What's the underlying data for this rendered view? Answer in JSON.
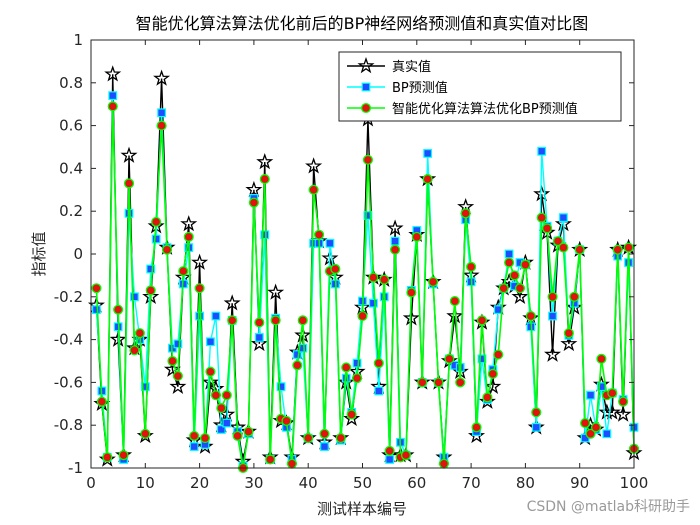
{
  "chart_data": {
    "type": "line",
    "title": "智能优化算法算法优化前后的BP神经网络预测值和真实值对比图",
    "xlabel": "测试样本编号",
    "ylabel": "指标值",
    "xlim": [
      0,
      100
    ],
    "ylim": [
      -1,
      1
    ],
    "xticks": [
      0,
      10,
      20,
      30,
      40,
      50,
      60,
      70,
      80,
      90,
      100
    ],
    "yticks": [
      -1,
      -0.8,
      -0.6,
      -0.4,
      -0.2,
      0,
      0.2,
      0.4,
      0.6,
      0.8,
      1
    ],
    "grid": false,
    "legend_position": "top-right",
    "x": [
      1,
      2,
      3,
      4,
      5,
      6,
      7,
      8,
      9,
      10,
      11,
      12,
      13,
      14,
      15,
      16,
      17,
      18,
      19,
      20,
      21,
      22,
      23,
      24,
      25,
      26,
      27,
      28,
      29,
      30,
      31,
      32,
      33,
      34,
      35,
      36,
      37,
      38,
      39,
      40,
      41,
      42,
      43,
      44,
      45,
      46,
      47,
      48,
      49,
      50,
      51,
      52,
      53,
      54,
      55,
      56,
      57,
      58,
      59,
      60,
      61,
      62,
      63,
      64,
      65,
      66,
      67,
      68,
      69,
      70,
      71,
      72,
      73,
      74,
      75,
      76,
      77,
      78,
      79,
      80,
      81,
      82,
      83,
      84,
      85,
      86,
      87,
      88,
      89,
      90,
      91,
      92,
      93,
      94,
      95,
      96,
      97,
      98,
      99,
      100
    ],
    "series": [
      {
        "name": "真实值",
        "color": "#000000",
        "marker": "star",
        "values": [
          -0.24,
          -0.7,
          -0.96,
          0.84,
          -0.4,
          -0.94,
          0.46,
          -0.44,
          -0.4,
          -0.85,
          -0.2,
          0.13,
          0.82,
          0.03,
          -0.54,
          -0.62,
          -0.11,
          0.14,
          -0.87,
          -0.04,
          -0.9,
          -0.6,
          -0.63,
          -0.8,
          -0.75,
          -0.23,
          -0.81,
          -0.97,
          -0.83,
          0.3,
          -0.42,
          0.43,
          -0.95,
          -0.18,
          -0.78,
          -0.79,
          -0.95,
          -0.46,
          -0.38,
          -0.86,
          0.41,
          0.06,
          -0.88,
          -0.02,
          -0.11,
          -0.86,
          -0.6,
          -0.77,
          -0.55,
          -0.25,
          0.63,
          -0.11,
          -0.62,
          -0.12,
          -0.94,
          0.12,
          -0.94,
          -0.94,
          -0.3,
          0.09,
          -0.6,
          0.35,
          -0.13,
          -0.6,
          -0.95,
          -0.5,
          -0.29,
          -0.55,
          0.22,
          -0.1,
          -0.85,
          -0.32,
          -0.69,
          -0.62,
          -0.25,
          -0.16,
          -0.13,
          -0.15,
          -0.2,
          -0.04,
          -0.3,
          -0.81,
          0.28,
          0.1,
          -0.47,
          0.04,
          0.14,
          -0.42,
          -0.25,
          0.02,
          -0.86,
          -0.8,
          -0.82,
          -0.61,
          -0.74,
          -0.74,
          0.02,
          -0.75,
          0.03,
          -0.93
        ]
      },
      {
        "name": "BP预测值",
        "color": "#00ffff",
        "marker": "square",
        "values": [
          -0.26,
          -0.64,
          -0.95,
          0.74,
          -0.34,
          -0.96,
          0.19,
          -0.2,
          -0.4,
          -0.62,
          -0.07,
          0.07,
          0.66,
          0.03,
          -0.44,
          -0.42,
          -0.14,
          0.03,
          -0.9,
          -0.29,
          -0.89,
          -0.41,
          -0.29,
          -0.82,
          -0.79,
          -0.31,
          -0.83,
          -0.99,
          -0.84,
          0.26,
          -0.39,
          0.09,
          -0.96,
          -0.3,
          -0.62,
          -0.81,
          -0.96,
          -0.47,
          -0.44,
          -0.86,
          0.05,
          0.05,
          -0.9,
          0.05,
          -0.14,
          -0.87,
          -0.58,
          -0.74,
          -0.51,
          -0.22,
          0.18,
          -0.23,
          -0.64,
          -0.2,
          -0.96,
          0.06,
          -0.88,
          -0.94,
          -0.17,
          0.11,
          -0.6,
          0.47,
          -0.14,
          -0.6,
          -0.95,
          -0.49,
          -0.52,
          -0.53,
          0.16,
          -0.13,
          -0.83,
          -0.49,
          -0.68,
          -0.54,
          -0.26,
          -0.16,
          0.0,
          -0.15,
          -0.04,
          -0.05,
          -0.34,
          -0.81,
          0.48,
          0.13,
          -0.29,
          0.06,
          0.17,
          -0.38,
          -0.23,
          0.02,
          -0.86,
          -0.66,
          -0.82,
          -0.62,
          -0.84,
          -0.65,
          -0.01,
          -0.68,
          -0.04,
          -0.81
        ]
      },
      {
        "name": "智能优化算法算法优化BP预测值",
        "color": "#00ff00",
        "marker": "circle",
        "values": [
          -0.16,
          -0.69,
          -0.95,
          0.69,
          -0.26,
          -0.94,
          0.33,
          -0.45,
          -0.37,
          -0.84,
          -0.17,
          0.15,
          0.6,
          0.02,
          -0.5,
          -0.57,
          -0.08,
          0.08,
          -0.85,
          -0.16,
          -0.86,
          -0.55,
          -0.66,
          -0.72,
          -0.66,
          -0.31,
          -0.85,
          -1.0,
          -0.83,
          0.24,
          -0.32,
          0.35,
          -0.96,
          -0.31,
          -0.77,
          -0.78,
          -0.98,
          -0.52,
          -0.31,
          -0.86,
          0.3,
          0.09,
          -0.84,
          -0.08,
          -0.07,
          -0.86,
          -0.53,
          -0.75,
          -0.58,
          -0.29,
          0.44,
          -0.11,
          -0.51,
          -0.12,
          -0.92,
          0.02,
          -0.95,
          -0.94,
          -0.18,
          0.08,
          -0.6,
          0.35,
          -0.13,
          -0.6,
          -0.98,
          -0.49,
          -0.22,
          -0.6,
          0.19,
          -0.06,
          -0.81,
          -0.31,
          -0.67,
          -0.56,
          -0.47,
          -0.16,
          -0.04,
          -0.1,
          -0.16,
          -0.05,
          -0.29,
          -0.74,
          0.17,
          0.12,
          -0.2,
          0.06,
          0.03,
          -0.37,
          -0.2,
          0.02,
          -0.79,
          -0.84,
          -0.81,
          -0.49,
          -0.66,
          -0.65,
          0.02,
          -0.69,
          0.03,
          -0.91
        ]
      }
    ]
  },
  "watermark": "CSDN @matlab科研助手"
}
